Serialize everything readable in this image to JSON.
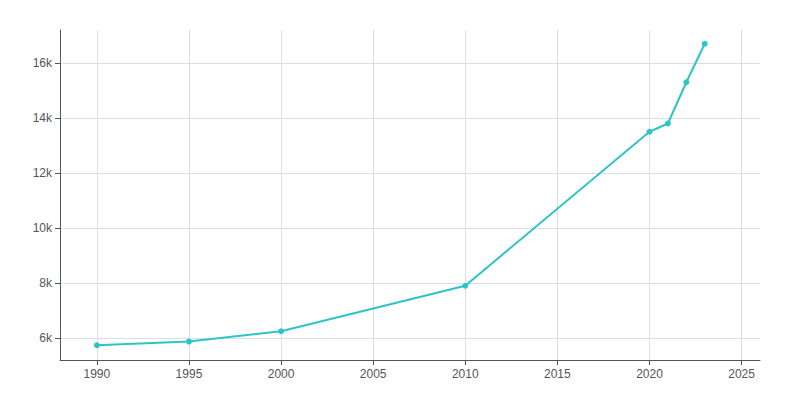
{
  "chart_data": {
    "type": "line",
    "x": [
      1990,
      1995,
      2000,
      2010,
      2020,
      2021,
      2022,
      2023
    ],
    "values": [
      5736,
      5871,
      6246,
      7900,
      13500,
      13800,
      15300,
      16700
    ],
    "color": "#2ec4c4",
    "marker": "circle",
    "xlim": [
      1988,
      2026
    ],
    "xticks": [
      1990,
      1995,
      2000,
      2005,
      2010,
      2015,
      2020,
      2025
    ],
    "ylim": [
      5200,
      17200
    ],
    "yticks": [
      {
        "value": 6000,
        "label": "6k"
      },
      {
        "value": 8000,
        "label": "8k"
      },
      {
        "value": 10000,
        "label": "10k"
      },
      {
        "value": 12000,
        "label": "12k"
      },
      {
        "value": 14000,
        "label": "14k"
      },
      {
        "value": 16000,
        "label": "16k"
      }
    ],
    "grid": true
  }
}
